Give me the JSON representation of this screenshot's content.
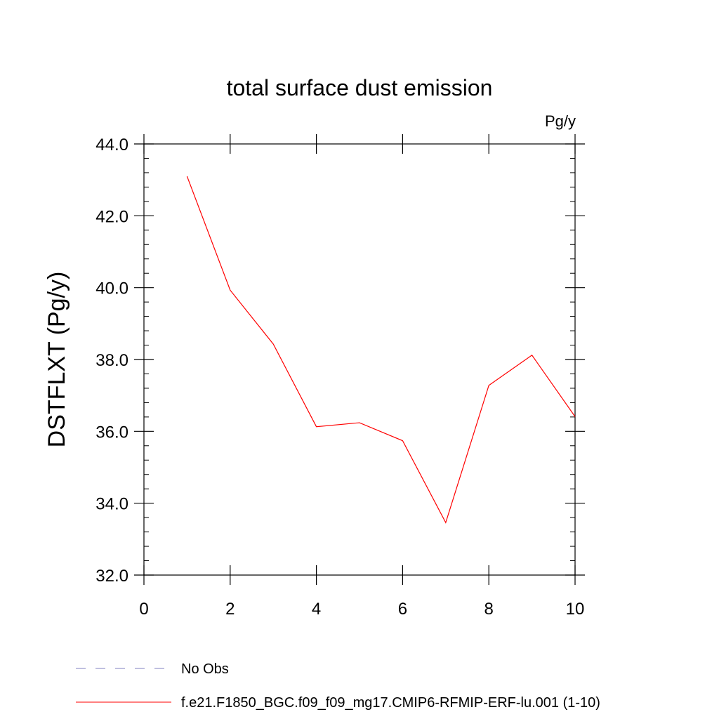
{
  "chart_data": {
    "type": "line",
    "title": "total surface dust emission",
    "units": "Pg/y",
    "ylabel": "DSTFLXT  (Pg/y)",
    "xlabel": "",
    "xlim": [
      0,
      10
    ],
    "ylim": [
      32.0,
      44.0
    ],
    "xticks": [
      0,
      2,
      4,
      6,
      8,
      10
    ],
    "xtick_labels": [
      "0",
      "2",
      "4",
      "6",
      "8",
      "10"
    ],
    "yticks": [
      32,
      34,
      36,
      38,
      40,
      42,
      44
    ],
    "ytick_labels": [
      "32.0",
      "34.0",
      "36.0",
      "38.0",
      "40.0",
      "42.0",
      "44.0"
    ],
    "grid": false,
    "legend_position": "bottom",
    "series": [
      {
        "name": "f.e21.F1850_BGC.f09_f09_mg17.CMIP6-RFMIP-ERF-lu.001 (1-10)",
        "color": "#ff0000",
        "style": "solid",
        "x": [
          1,
          2,
          3,
          4,
          5,
          6,
          7,
          8,
          9,
          10
        ],
        "values": [
          43.1,
          39.93,
          38.43,
          36.13,
          36.24,
          35.74,
          33.46,
          37.28,
          38.12,
          36.41
        ]
      }
    ],
    "legend": [
      {
        "label": "No Obs",
        "color": "#8080c0",
        "style": "dashed"
      },
      {
        "label": "f.e21.F1850_BGC.f09_f09_mg17.CMIP6-RFMIP-ERF-lu.001 (1-10)",
        "color": "#ff0000",
        "style": "solid"
      }
    ]
  }
}
